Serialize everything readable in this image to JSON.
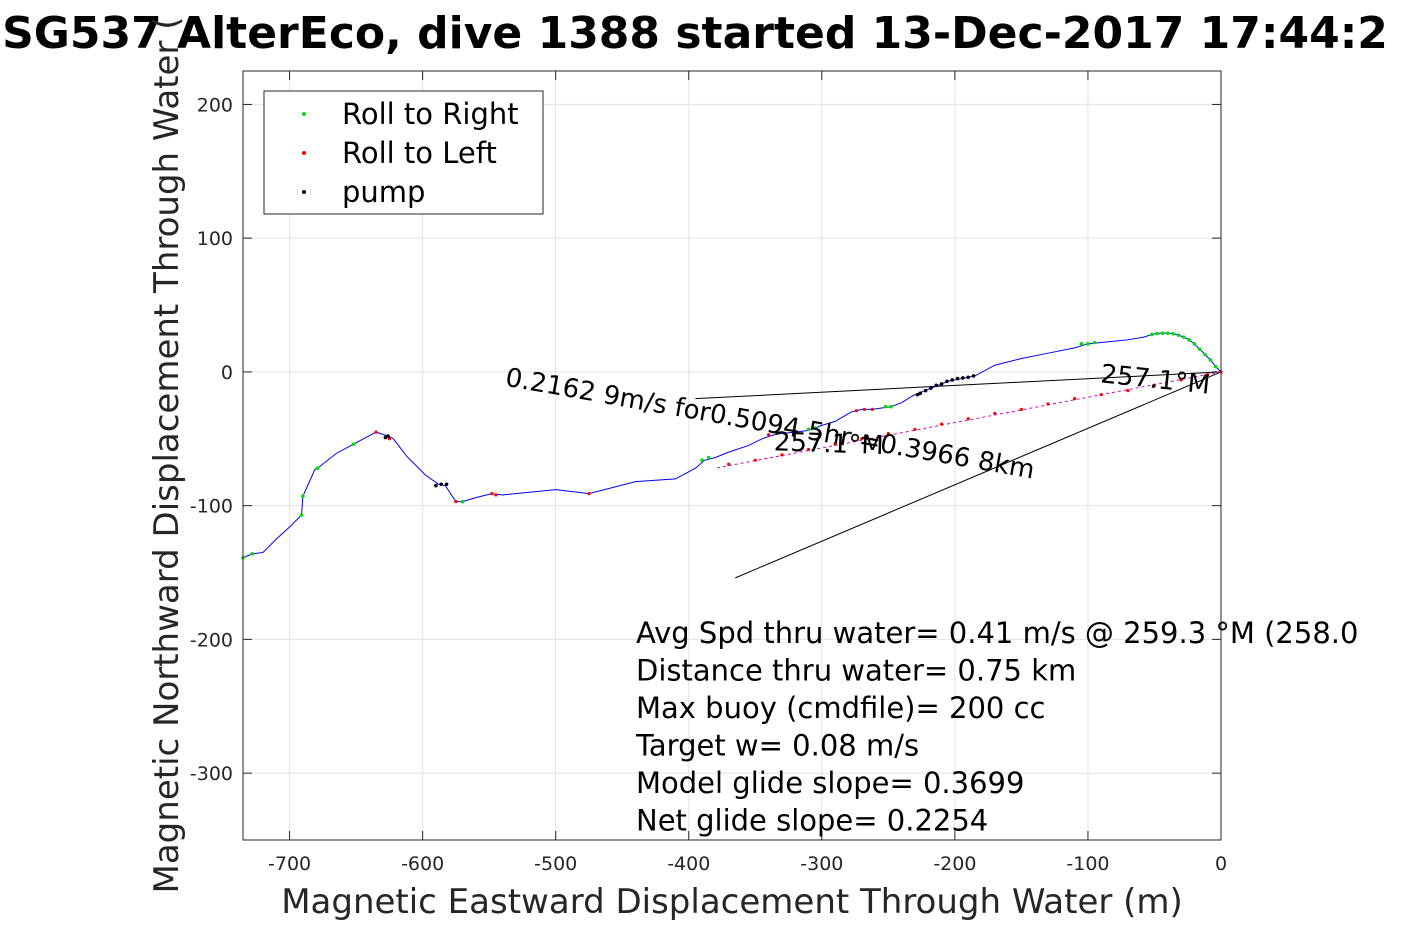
{
  "chart_data": {
    "type": "line",
    "title": "SG537 AlterEco, dive 1388 started 13-Dec-2017 17:44:2",
    "xlabel": "Magnetic Eastward Displacement Through Water (m)",
    "ylabel": "Magnetic Northward Displacement Through Water (",
    "xlim": [
      -735,
      0
    ],
    "ylim": [
      -350,
      225
    ],
    "xticks": [
      -700,
      -600,
      -500,
      -400,
      -300,
      -200,
      -100,
      0
    ],
    "yticks": [
      200,
      100,
      0,
      -100,
      -200,
      -300
    ],
    "xtick_labels": [
      "-700",
      "-600",
      "-500",
      "-400",
      "-300",
      "-200",
      "-100",
      "0"
    ],
    "ytick_labels": [
      "200",
      "100",
      "0",
      "-100",
      "-200",
      "-300"
    ],
    "grid": true,
    "legend_position": "top-left",
    "legend": [
      {
        "label": "Roll to Right",
        "color": "#00dd00"
      },
      {
        "label": "Roll to Left",
        "color": "#ff0000"
      },
      {
        "label": "pump",
        "color": "#000000"
      }
    ],
    "track_color": "#0000ff",
    "track": [
      [
        0,
        0
      ],
      [
        -4,
        4
      ],
      [
        -8,
        9
      ],
      [
        -12,
        13
      ],
      [
        -16,
        17
      ],
      [
        -20,
        21
      ],
      [
        -24,
        24
      ],
      [
        -28,
        26
      ],
      [
        -32,
        27.5
      ],
      [
        -36,
        28.5
      ],
      [
        -40,
        29
      ],
      [
        -44,
        29
      ],
      [
        -48,
        28.7
      ],
      [
        -52,
        28
      ],
      [
        -58,
        26
      ],
      [
        -70,
        24
      ],
      [
        -80,
        23
      ],
      [
        -90,
        22
      ],
      [
        -100,
        21
      ],
      [
        -110,
        18
      ],
      [
        -130,
        14
      ],
      [
        -150,
        10
      ],
      [
        -170,
        5
      ],
      [
        -185,
        -3
      ],
      [
        -190,
        -4
      ],
      [
        -195,
        -5
      ],
      [
        -200,
        -6
      ],
      [
        -205,
        -7
      ],
      [
        -210,
        -9
      ],
      [
        -215,
        -11
      ],
      [
        -220,
        -13
      ],
      [
        -225,
        -15
      ],
      [
        -232,
        -18
      ],
      [
        -240,
        -23
      ],
      [
        -248,
        -26
      ],
      [
        -255,
        -27
      ],
      [
        -262,
        -28
      ],
      [
        -270,
        -28
      ],
      [
        -278,
        -30
      ],
      [
        -290,
        -37
      ],
      [
        -300,
        -40
      ],
      [
        -305,
        -42
      ],
      [
        -312,
        -44
      ],
      [
        -320,
        -45
      ],
      [
        -330,
        -46
      ],
      [
        -336,
        -47
      ],
      [
        -345,
        -50
      ],
      [
        -355,
        -55
      ],
      [
        -370,
        -60
      ],
      [
        -380,
        -64
      ],
      [
        -388,
        -66
      ],
      [
        -395,
        -72
      ],
      [
        -410,
        -80
      ],
      [
        -440,
        -82
      ],
      [
        -475,
        -91
      ],
      [
        -500,
        -88
      ],
      [
        -540,
        -92
      ],
      [
        -548,
        -91
      ],
      [
        -560,
        -94
      ],
      [
        -570,
        -97
      ],
      [
        -575,
        -97
      ],
      [
        -583,
        -85
      ],
      [
        -588,
        -84
      ],
      [
        -598,
        -77
      ],
      [
        -612,
        -63
      ],
      [
        -622,
        -50
      ],
      [
        -626,
        -48
      ],
      [
        -635,
        -45
      ],
      [
        -652,
        -54
      ],
      [
        -665,
        -61
      ],
      [
        -679,
        -72
      ],
      [
        -681,
        -73
      ],
      [
        -690,
        -93
      ],
      [
        -691,
        -107
      ],
      [
        -700,
        -116
      ],
      [
        -710,
        -125
      ],
      [
        -720,
        -135
      ],
      [
        -728,
        -136
      ],
      [
        -735,
        -139
      ]
    ],
    "roll_right_points": [
      [
        -4,
        4
      ],
      [
        -8,
        9
      ],
      [
        -12,
        13
      ],
      [
        -16,
        17
      ],
      [
        -20,
        21
      ],
      [
        -24,
        24
      ],
      [
        -28,
        26
      ],
      [
        -32,
        27.5
      ],
      [
        -36,
        28.5
      ],
      [
        -40,
        29
      ],
      [
        -44,
        29
      ],
      [
        -48,
        28.7
      ],
      [
        -52,
        28
      ],
      [
        -95,
        22
      ],
      [
        -100,
        21
      ],
      [
        -105,
        21
      ],
      [
        -248,
        -26
      ],
      [
        -252,
        -26
      ],
      [
        -305,
        -42
      ],
      [
        -310,
        -43
      ],
      [
        -385,
        -64
      ],
      [
        -390,
        -66
      ],
      [
        -570,
        -97
      ],
      [
        -652,
        -54
      ],
      [
        -679,
        -72
      ],
      [
        -690,
        -93
      ],
      [
        -691,
        -107
      ],
      [
        -728,
        -136
      ],
      [
        -735,
        -139
      ]
    ],
    "roll_left_points": [
      [
        0,
        0
      ],
      [
        -262,
        -28
      ],
      [
        -268,
        -28
      ],
      [
        -274,
        -29
      ],
      [
        -328,
        -46
      ],
      [
        -334,
        -46
      ],
      [
        -340,
        -47
      ],
      [
        -475,
        -91
      ],
      [
        -548,
        -91
      ],
      [
        -545,
        -92
      ],
      [
        -575,
        -97
      ],
      [
        -635,
        -45
      ],
      [
        -625,
        -50
      ],
      [
        -10,
        -2
      ],
      [
        -30,
        -6
      ],
      [
        -50,
        -10
      ],
      [
        -70,
        -14
      ],
      [
        -90,
        -17
      ],
      [
        -110,
        -20
      ],
      [
        -130,
        -24
      ],
      [
        -150,
        -28
      ],
      [
        -170,
        -31
      ],
      [
        -190,
        -35
      ],
      [
        -210,
        -39
      ],
      [
        -230,
        -43
      ],
      [
        -250,
        -46
      ],
      [
        -270,
        -50
      ],
      [
        -290,
        -54
      ],
      [
        -310,
        -58
      ],
      [
        -330,
        -62
      ],
      [
        -350,
        -66
      ],
      [
        -370,
        -69
      ]
    ],
    "pump_points": [
      [
        -186,
        -3
      ],
      [
        -190,
        -4
      ],
      [
        -194,
        -4.5
      ],
      [
        -198,
        -5
      ],
      [
        -202,
        -6
      ],
      [
        -206,
        -7
      ],
      [
        -210,
        -9
      ],
      [
        -214,
        -10
      ],
      [
        -218,
        -12
      ],
      [
        -222,
        -14
      ],
      [
        -226,
        -16
      ],
      [
        -228,
        -17
      ],
      [
        -582,
        -84
      ],
      [
        -586,
        -84
      ],
      [
        -590,
        -85
      ],
      [
        -626,
        -48
      ],
      [
        -628,
        -49
      ]
    ],
    "reference_lines": [
      [
        [
          0,
          0
        ],
        [
          -395,
          -20
        ]
      ],
      [
        [
          0,
          0
        ],
        [
          -365,
          -154
        ]
      ]
    ],
    "reference_line_color": "#000000",
    "magenta_line": [
      [
        0,
        0
      ],
      [
        -380,
        -72
      ]
    ],
    "magenta_line_color": "#cc00cc",
    "rotated_labels": [
      {
        "text": "0.2162 9m/s for0.5094 5hr =0.3966 8km",
        "at": [
          -340,
          -45
        ],
        "angle_deg": 180.0
      },
      {
        "text": "257.1°M",
        "at": [
          -50,
          -12
        ],
        "angle_deg": 176.0
      },
      {
        "text": "257.1°M",
        "at": [
          -295,
          -60
        ],
        "angle_deg": 172.0
      }
    ],
    "stats": [
      "Avg Spd thru water=  0.41 m/s @ 259.3 °M (258.0",
      "Distance thru water=  0.75 km",
      "Max buoy (cmdfile)= 200 cc",
      "Target w= 0.08 m/s",
      "Model glide slope= 0.3699",
      "Net glide slope= 0.2254"
    ]
  }
}
